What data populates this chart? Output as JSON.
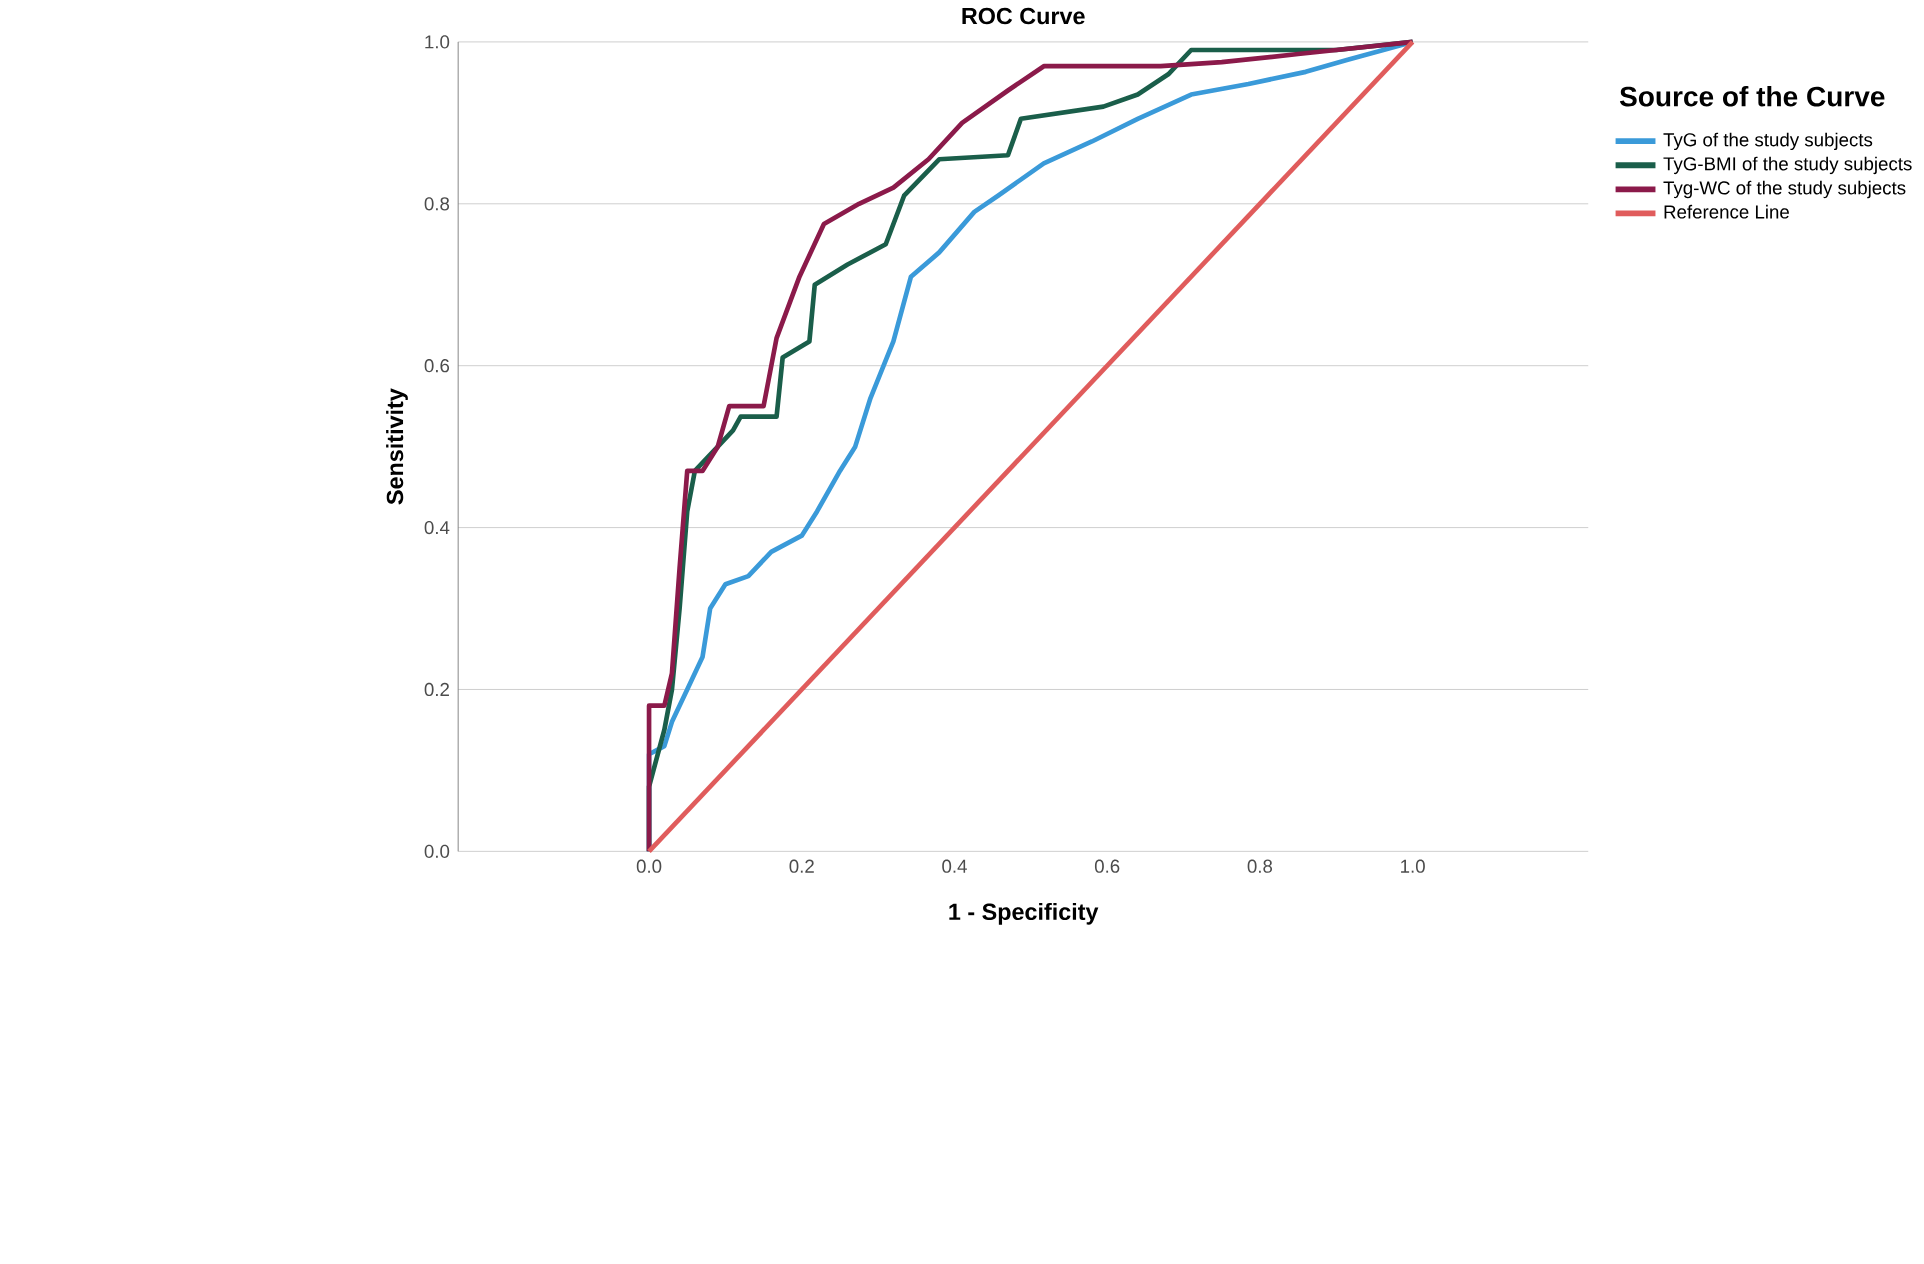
{
  "chart_data": {
    "type": "line",
    "title": "ROC Curve",
    "xlabel": "1 - Specificity",
    "ylabel": "Sensitivity",
    "legend_title": "Source of the Curve",
    "legend": "right",
    "grid": "y",
    "line_style": "solid",
    "xlim": [
      -0.25,
      1.23
    ],
    "ylim": [
      0,
      1
    ],
    "xticks": [
      {
        "value": 0,
        "label": "0.0"
      },
      {
        "value": 0.2,
        "label": "0.2"
      },
      {
        "value": 0.4,
        "label": "0.4"
      },
      {
        "value": 0.6,
        "label": "0.6"
      },
      {
        "value": 0.8,
        "label": "0.8"
      },
      {
        "value": 1,
        "label": "1.0"
      }
    ],
    "yticks": [
      {
        "value": 0,
        "label": "0.0"
      },
      {
        "value": 0.2,
        "label": "0.2"
      },
      {
        "value": 0.4,
        "label": "0.4"
      },
      {
        "value": 0.6,
        "label": "0.6"
      },
      {
        "value": 0.8,
        "label": "0.8"
      },
      {
        "value": 1,
        "label": "1.0"
      }
    ],
    "series": [
      {
        "name": "TyG of the study subjects",
        "color": "#3a9ad9",
        "x": [
          0,
          0,
          0.02,
          0.03,
          0.05,
          0.07,
          0.08,
          0.1,
          0.13,
          0.16,
          0.2,
          0.22,
          0.25,
          0.27,
          0.29,
          0.32,
          0.343,
          0.38,
          0.426,
          0.457,
          0.517,
          0.58,
          0.64,
          0.71,
          0.785,
          0.86,
          0.915,
          1
        ],
        "values": [
          0,
          0.12,
          0.13,
          0.16,
          0.2,
          0.24,
          0.3,
          0.33,
          0.34,
          0.37,
          0.39,
          0.42,
          0.47,
          0.5,
          0.56,
          0.63,
          0.71,
          0.74,
          0.79,
          0.81,
          0.85,
          0.877,
          0.905,
          0.935,
          0.948,
          0.963,
          0.978,
          1
        ]
      },
      {
        "name": "TyG-BMI of the study subjects",
        "color": "#1a5e4a",
        "x": [
          0,
          0,
          0.02,
          0.03,
          0.04,
          0.05,
          0.06,
          0.09,
          0.11,
          0.12,
          0.167,
          0.175,
          0.21,
          0.217,
          0.26,
          0.31,
          0.334,
          0.38,
          0.47,
          0.487,
          0.595,
          0.64,
          0.68,
          0.71,
          0.9,
          1
        ],
        "values": [
          0,
          0.08,
          0.15,
          0.2,
          0.3,
          0.42,
          0.47,
          0.5,
          0.52,
          0.537,
          0.537,
          0.61,
          0.63,
          0.7,
          0.725,
          0.75,
          0.81,
          0.855,
          0.86,
          0.905,
          0.92,
          0.935,
          0.96,
          0.99,
          0.99,
          1
        ]
      },
      {
        "name": "Tyg-WC of the study subjects",
        "color": "#8b1a4a",
        "x": [
          0,
          0,
          0.02,
          0.03,
          0.04,
          0.05,
          0.07,
          0.09,
          0.105,
          0.15,
          0.167,
          0.197,
          0.229,
          0.275,
          0.32,
          0.366,
          0.41,
          0.47,
          0.517,
          0.67,
          0.75,
          0.85,
          0.95,
          1
        ],
        "values": [
          0,
          0.18,
          0.18,
          0.22,
          0.35,
          0.47,
          0.47,
          0.5,
          0.55,
          0.55,
          0.634,
          0.71,
          0.775,
          0.8,
          0.82,
          0.855,
          0.9,
          0.94,
          0.97,
          0.97,
          0.975,
          0.985,
          0.995,
          1
        ]
      },
      {
        "name": "Reference Line",
        "color": "#e05c5c",
        "x": [
          0,
          1
        ],
        "values": [
          0,
          1
        ]
      }
    ]
  }
}
